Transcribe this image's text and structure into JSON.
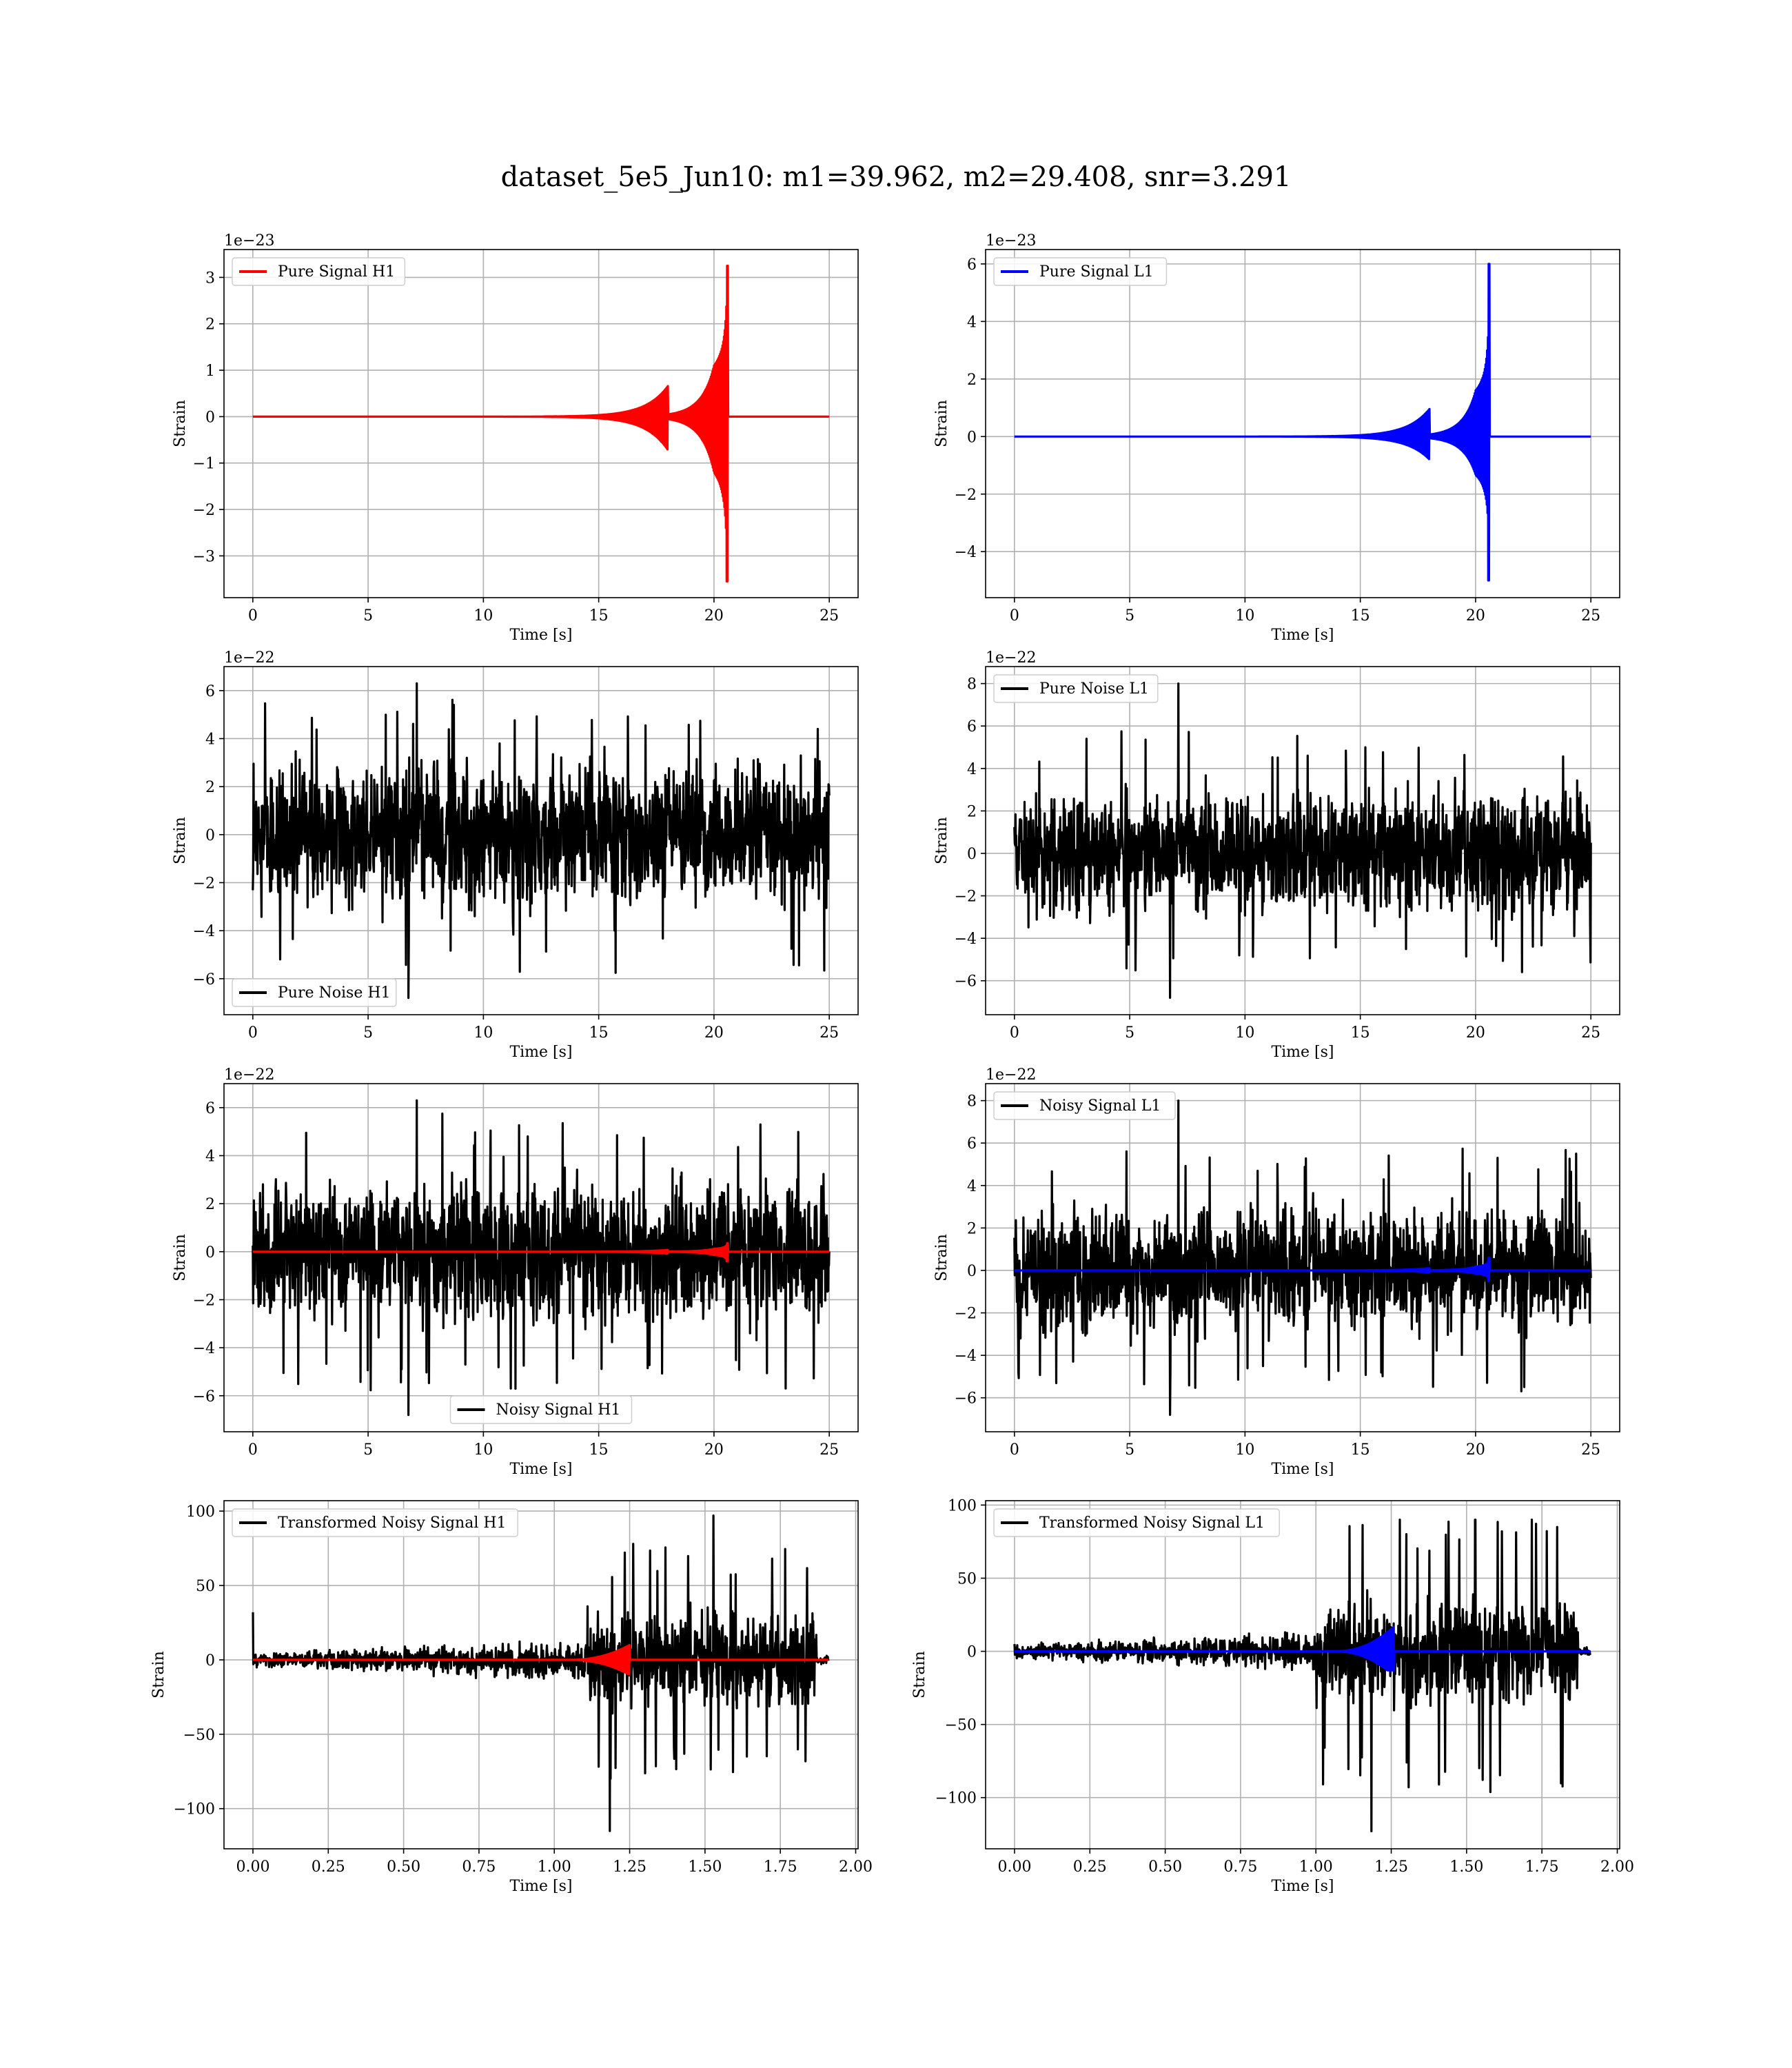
{
  "figure": {
    "suptitle": "dataset_5e5_Jun10: m1=39.962, m2=29.408, snr=3.291"
  },
  "chart_data": [
    {
      "id": "pure-signal-h1",
      "type": "line",
      "xlabel": "Time [s]",
      "ylabel": "Strain",
      "offset_text": "1e−23",
      "xlim": [
        -1.25,
        26.25
      ],
      "ylim": [
        -3.9,
        3.6
      ],
      "xticks": [
        0,
        5,
        10,
        15,
        20,
        25
      ],
      "xtick_labels": [
        "0",
        "5",
        "10",
        "15",
        "20",
        "25"
      ],
      "yticks": [
        -3,
        -2,
        -1,
        0,
        1,
        2,
        3
      ],
      "ytick_labels": [
        "−3",
        "−2",
        "−1",
        "0",
        "1",
        "2",
        "3"
      ],
      "grid": true,
      "legend_loc": "upper left",
      "series": [
        {
          "name": "Pure Signal H1",
          "color": "#ff0000",
          "kind": "chirp",
          "x_start": 0,
          "x_end": 25,
          "t_merger": 20.6,
          "peak_max": 3.25,
          "peak_min": -3.55,
          "envelope_at_20": 1.1
        }
      ]
    },
    {
      "id": "pure-signal-l1",
      "type": "line",
      "xlabel": "Time [s]",
      "ylabel": "Strain",
      "offset_text": "1e−23",
      "xlim": [
        -1.25,
        26.25
      ],
      "ylim": [
        -5.6,
        6.5
      ],
      "xticks": [
        0,
        5,
        10,
        15,
        20,
        25
      ],
      "xtick_labels": [
        "0",
        "5",
        "10",
        "15",
        "20",
        "25"
      ],
      "yticks": [
        -4,
        -2,
        0,
        2,
        4,
        6
      ],
      "ytick_labels": [
        "−4",
        "−2",
        "0",
        "2",
        "4",
        "6"
      ],
      "grid": true,
      "legend_loc": "upper left",
      "series": [
        {
          "name": "Pure Signal L1",
          "color": "#0000ff",
          "kind": "chirp",
          "x_start": 0,
          "x_end": 25,
          "t_merger": 20.6,
          "peak_max": 6.0,
          "peak_min": -5.0,
          "envelope_at_20": 1.6
        }
      ]
    },
    {
      "id": "pure-noise-h1",
      "type": "line",
      "xlabel": "Time [s]",
      "ylabel": "Strain",
      "offset_text": "1e−22",
      "xlim": [
        -1.25,
        26.25
      ],
      "ylim": [
        -7.5,
        7.0
      ],
      "xticks": [
        0,
        5,
        10,
        15,
        20,
        25
      ],
      "xtick_labels": [
        "0",
        "5",
        "10",
        "15",
        "20",
        "25"
      ],
      "yticks": [
        -6,
        -4,
        -2,
        0,
        2,
        4,
        6
      ],
      "ytick_labels": [
        "−6",
        "−4",
        "−2",
        "0",
        "2",
        "4",
        "6"
      ],
      "grid": true,
      "legend_loc": "lower left",
      "series": [
        {
          "name": "Pure Noise H1",
          "color": "#000000",
          "kind": "noise",
          "x_start": 0,
          "x_end": 25,
          "band": 3.3,
          "peak_max": 6.3,
          "peak_min": -6.8
        }
      ]
    },
    {
      "id": "pure-noise-l1",
      "type": "line",
      "xlabel": "Time [s]",
      "ylabel": "Strain",
      "offset_text": "1e−22",
      "xlim": [
        -1.25,
        26.25
      ],
      "ylim": [
        -7.6,
        8.8
      ],
      "xticks": [
        0,
        5,
        10,
        15,
        20,
        25
      ],
      "xtick_labels": [
        "0",
        "5",
        "10",
        "15",
        "20",
        "25"
      ],
      "yticks": [
        -6,
        -4,
        -2,
        0,
        2,
        4,
        6,
        8
      ],
      "ytick_labels": [
        "−6",
        "−4",
        "−2",
        "0",
        "2",
        "4",
        "6",
        "8"
      ],
      "grid": true,
      "legend_loc": "upper left",
      "series": [
        {
          "name": "Pure Noise L1",
          "color": "#000000",
          "kind": "noise",
          "x_start": 0,
          "x_end": 25,
          "band": 3.3,
          "peak_max": 8.0,
          "peak_min": -6.8
        }
      ]
    },
    {
      "id": "noisy-signal-h1",
      "type": "line",
      "xlabel": "Time [s]",
      "ylabel": "Strain",
      "offset_text": "1e−22",
      "xlim": [
        -1.25,
        26.25
      ],
      "ylim": [
        -7.5,
        7.0
      ],
      "xticks": [
        0,
        5,
        10,
        15,
        20,
        25
      ],
      "xtick_labels": [
        "0",
        "5",
        "10",
        "15",
        "20",
        "25"
      ],
      "yticks": [
        -6,
        -4,
        -2,
        0,
        2,
        4,
        6
      ],
      "ytick_labels": [
        "−6",
        "−4",
        "−2",
        "0",
        "2",
        "4",
        "6"
      ],
      "grid": true,
      "legend_loc": "lower center",
      "series": [
        {
          "name": "Noisy Signal H1",
          "color": "#000000",
          "kind": "noise",
          "x_start": 0,
          "x_end": 25,
          "band": 3.3,
          "peak_max": 6.3,
          "peak_min": -6.8
        },
        {
          "color": "#ff0000",
          "kind": "chirp",
          "x_start": 0,
          "x_end": 25,
          "t_merger": 20.6,
          "peak_max": 0.35,
          "peak_min": -0.4,
          "envelope_at_20": 0.12
        }
      ]
    },
    {
      "id": "noisy-signal-l1",
      "type": "line",
      "xlabel": "Time [s]",
      "ylabel": "Strain",
      "offset_text": "1e−22",
      "xlim": [
        -1.25,
        26.25
      ],
      "ylim": [
        -7.6,
        8.8
      ],
      "xticks": [
        0,
        5,
        10,
        15,
        20,
        25
      ],
      "xtick_labels": [
        "0",
        "5",
        "10",
        "15",
        "20",
        "25"
      ],
      "yticks": [
        -6,
        -4,
        -2,
        0,
        2,
        4,
        6,
        8
      ],
      "ytick_labels": [
        "−6",
        "−4",
        "−2",
        "0",
        "2",
        "4",
        "6",
        "8"
      ],
      "grid": true,
      "legend_loc": "upper left",
      "series": [
        {
          "name": "Noisy Signal L1",
          "color": "#000000",
          "kind": "noise",
          "x_start": 0,
          "x_end": 25,
          "band": 3.3,
          "peak_max": 8.0,
          "peak_min": -6.8
        },
        {
          "color": "#0000ff",
          "kind": "chirp",
          "x_start": 0,
          "x_end": 25,
          "t_merger": 20.6,
          "peak_max": 0.6,
          "peak_min": -0.5,
          "envelope_at_20": 0.18
        }
      ]
    },
    {
      "id": "transformed-noisy-signal-h1",
      "type": "line",
      "xlabel": "Time [s]",
      "ylabel": "Strain",
      "offset_text": "",
      "xlim": [
        -0.096,
        2.008
      ],
      "ylim": [
        -127,
        107
      ],
      "xticks": [
        0.0,
        0.25,
        0.5,
        0.75,
        1.0,
        1.25,
        1.5,
        1.75,
        2.0
      ],
      "xtick_labels": [
        "0.00",
        "0.25",
        "0.50",
        "0.75",
        "1.00",
        "1.25",
        "1.50",
        "1.75",
        "2.00"
      ],
      "yticks": [
        -100,
        -50,
        0,
        50,
        100
      ],
      "ytick_labels": [
        "−100",
        "−50",
        "0",
        "50",
        "100"
      ],
      "grid": true,
      "legend_loc": "upper left",
      "series": [
        {
          "name": "Transformed Noisy Signal H1",
          "color": "#000000",
          "kind": "whitened",
          "x_start": 0.0,
          "x_end": 1.91,
          "t_jump": 1.11,
          "t_end_burst": 1.87,
          "band_early": 4,
          "band_late": 25,
          "peak_max": 97,
          "peak_min": -115,
          "spike_start": 32
        },
        {
          "color": "#ff0000",
          "kind": "chirp",
          "x_start": 0.0,
          "x_end": 1.91,
          "t_merger": 1.25,
          "peak_max": 10,
          "peak_min": -11,
          "envelope_at_20": 0
        }
      ]
    },
    {
      "id": "transformed-noisy-signal-l1",
      "type": "line",
      "xlabel": "Time [s]",
      "ylabel": "Strain",
      "offset_text": "",
      "xlim": [
        -0.096,
        2.008
      ],
      "ylim": [
        -135,
        103
      ],
      "xticks": [
        0.0,
        0.25,
        0.5,
        0.75,
        1.0,
        1.25,
        1.5,
        1.75,
        2.0
      ],
      "xtick_labels": [
        "0.00",
        "0.25",
        "0.50",
        "0.75",
        "1.00",
        "1.25",
        "1.50",
        "1.75",
        "2.00"
      ],
      "yticks": [
        -100,
        -50,
        0,
        50,
        100
      ],
      "ytick_labels": [
        "−100",
        "−50",
        "0",
        "50",
        "100"
      ],
      "grid": true,
      "legend_loc": "upper left",
      "series": [
        {
          "name": "Transformed Noisy Signal L1",
          "color": "#000000",
          "kind": "whitened",
          "x_start": 0.0,
          "x_end": 1.91,
          "t_jump": 1.0,
          "t_end_burst": 1.87,
          "band_early": 4,
          "band_late": 30,
          "peak_max": 90,
          "peak_min": -123,
          "spike_start": 5
        },
        {
          "color": "#0000ff",
          "kind": "chirp",
          "x_start": 0.0,
          "x_end": 1.91,
          "t_merger": 1.26,
          "peak_max": 17,
          "peak_min": -13,
          "envelope_at_20": 0
        }
      ]
    }
  ]
}
